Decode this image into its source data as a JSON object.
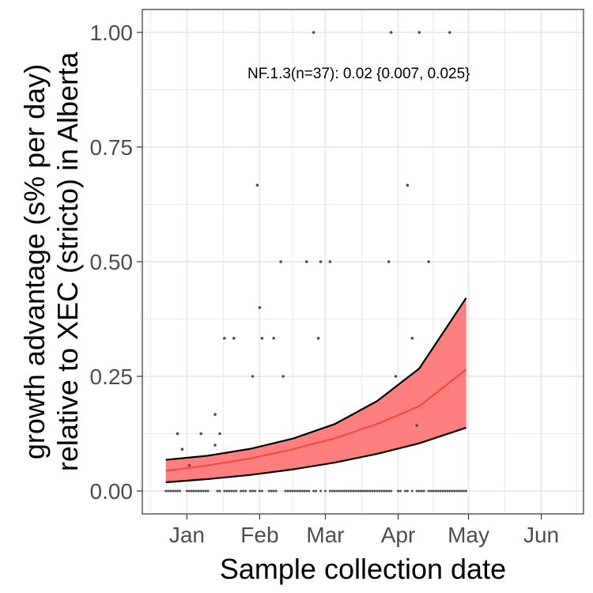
{
  "chart_data": {
    "type": "scatter",
    "title": "",
    "xlabel": "Sample collection date",
    "ylabel_lines": [
      "growth advantage (s% per day)",
      "relative to XEC (stricto) in Alberta"
    ],
    "x_type": "date",
    "xlim": [
      "2024-12-13",
      "2025-06-19"
    ],
    "ylim": [
      -0.05,
      1.05
    ],
    "x_ticks": [
      {
        "label": "Jan",
        "date": "2025-01-01"
      },
      {
        "label": "Feb",
        "date": "2025-02-01"
      },
      {
        "label": "Mar",
        "date": "2025-03-01"
      },
      {
        "label": "Apr",
        "date": "2025-04-01"
      },
      {
        "label": "May",
        "date": "2025-05-01"
      },
      {
        "label": "Jun",
        "date": "2025-06-01"
      }
    ],
    "y_ticks": [
      {
        "label": "0.00",
        "value": 0.0
      },
      {
        "label": "0.25",
        "value": 0.25
      },
      {
        "label": "0.50",
        "value": 0.5
      },
      {
        "label": "0.75",
        "value": 0.75
      },
      {
        "label": "1.00",
        "value": 1.0
      }
    ],
    "annotation": "NF.1.3(n=37): 0.02 {0.007, 0.025}",
    "grid": true,
    "colors": {
      "fit_line": "#f8433f",
      "ribbon_fill": "#ff7f7f",
      "ribbon_border": "#000000",
      "points": "#4d4d4d",
      "grid": "#ebebeb",
      "panel_border": "#333333"
    },
    "fit": {
      "x": [
        "2024-12-23",
        "2025-01-10",
        "2025-01-28",
        "2025-02-15",
        "2025-03-05",
        "2025-03-23",
        "2025-04-10",
        "2025-04-30"
      ],
      "y": [
        0.044,
        0.056,
        0.071,
        0.091,
        0.115,
        0.146,
        0.185,
        0.265
      ],
      "lower": [
        0.019,
        0.026,
        0.035,
        0.047,
        0.062,
        0.081,
        0.104,
        0.138
      ],
      "upper": [
        0.068,
        0.077,
        0.092,
        0.114,
        0.146,
        0.196,
        0.267,
        0.421
      ]
    },
    "points": [
      {
        "x": "2024-12-28",
        "y": 0.125
      },
      {
        "x": "2024-12-30",
        "y": 0.091
      },
      {
        "x": "2025-01-02",
        "y": 0.056
      },
      {
        "x": "2025-01-07",
        "y": 0.125
      },
      {
        "x": "2025-01-13",
        "y": 0.167
      },
      {
        "x": "2025-01-13",
        "y": 0.1
      },
      {
        "x": "2025-01-15",
        "y": 0.125
      },
      {
        "x": "2025-01-17",
        "y": 0.333
      },
      {
        "x": "2025-01-21",
        "y": 0.333
      },
      {
        "x": "2025-01-29",
        "y": 0.25
      },
      {
        "x": "2025-01-31",
        "y": 0.667
      },
      {
        "x": "2025-02-01",
        "y": 0.4
      },
      {
        "x": "2025-02-02",
        "y": 0.333
      },
      {
        "x": "2025-02-07",
        "y": 0.333
      },
      {
        "x": "2025-02-10",
        "y": 0.5
      },
      {
        "x": "2025-02-11",
        "y": 0.25
      },
      {
        "x": "2025-02-21",
        "y": 0.5
      },
      {
        "x": "2025-02-24",
        "y": 1.0
      },
      {
        "x": "2025-02-26",
        "y": 0.333
      },
      {
        "x": "2025-02-27",
        "y": 0.5
      },
      {
        "x": "2025-03-03",
        "y": 0.5
      },
      {
        "x": "2025-03-28",
        "y": 0.5
      },
      {
        "x": "2025-03-29",
        "y": 1.0
      },
      {
        "x": "2025-03-31",
        "y": 0.25
      },
      {
        "x": "2025-04-05",
        "y": 0.667
      },
      {
        "x": "2025-04-07",
        "y": 0.333
      },
      {
        "x": "2025-04-09",
        "y": 0.143
      },
      {
        "x": "2025-04-10",
        "y": 1.0
      },
      {
        "x": "2025-04-14",
        "y": 0.5
      },
      {
        "x": "2025-04-23",
        "y": 1.0
      }
    ],
    "zero_point_dates": [
      "2024-12-23",
      "2024-12-24",
      "2024-12-25",
      "2024-12-26",
      "2024-12-27",
      "2024-12-28",
      "2024-12-29",
      "2025-01-01",
      "2025-01-02",
      "2025-01-03",
      "2025-01-04",
      "2025-01-05",
      "2025-01-06",
      "2025-01-07",
      "2025-01-08",
      "2025-01-09",
      "2025-01-10",
      "2025-01-14",
      "2025-01-15",
      "2025-01-17",
      "2025-01-18",
      "2025-01-19",
      "2025-01-20",
      "2025-01-21",
      "2025-01-22",
      "2025-01-24",
      "2025-01-25",
      "2025-01-26",
      "2025-01-28",
      "2025-01-29",
      "2025-01-30",
      "2025-02-01",
      "2025-02-02",
      "2025-02-05",
      "2025-02-06",
      "2025-02-07",
      "2025-02-08",
      "2025-02-12",
      "2025-02-13",
      "2025-02-14",
      "2025-02-15",
      "2025-02-16",
      "2025-02-17",
      "2025-02-18",
      "2025-02-19",
      "2025-02-20",
      "2025-02-21",
      "2025-02-22",
      "2025-02-24",
      "2025-02-25",
      "2025-02-27",
      "2025-03-01",
      "2025-03-03",
      "2025-03-04",
      "2025-03-05",
      "2025-03-06",
      "2025-03-07",
      "2025-03-08",
      "2025-03-09",
      "2025-03-10",
      "2025-03-11",
      "2025-03-12",
      "2025-03-13",
      "2025-03-14",
      "2025-03-15",
      "2025-03-16",
      "2025-03-17",
      "2025-03-18",
      "2025-03-19",
      "2025-03-20",
      "2025-03-21",
      "2025-03-22",
      "2025-03-23",
      "2025-03-24",
      "2025-03-25",
      "2025-03-26",
      "2025-03-27",
      "2025-03-28",
      "2025-03-29",
      "2025-04-01",
      "2025-04-02",
      "2025-04-04",
      "2025-04-05",
      "2025-04-07",
      "2025-04-09",
      "2025-04-10",
      "2025-04-11",
      "2025-04-12",
      "2025-04-14",
      "2025-04-15",
      "2025-04-16",
      "2025-04-17",
      "2025-04-18",
      "2025-04-19",
      "2025-04-20",
      "2025-04-21",
      "2025-04-22",
      "2025-04-23",
      "2025-04-24",
      "2025-04-25",
      "2025-04-26",
      "2025-04-27",
      "2025-04-28",
      "2025-04-29",
      "2025-04-30"
    ]
  }
}
